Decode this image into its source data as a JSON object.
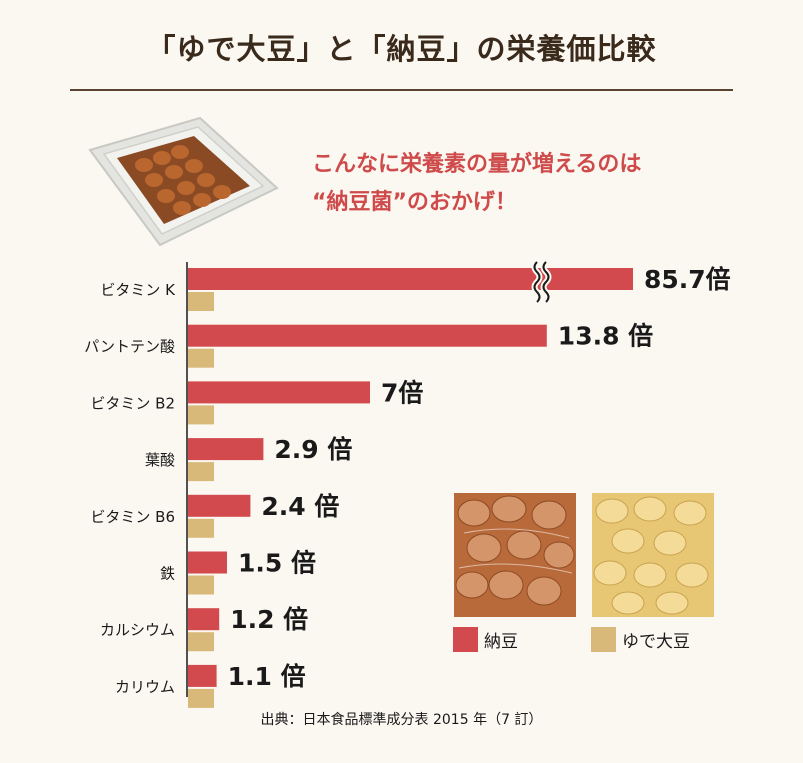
{
  "header": {
    "title": "「ゆで大豆」と「納豆」の栄養価比較"
  },
  "callout": {
    "line1": "こんなに栄養素の量が増えるのは",
    "line2": "“納豆菌”のおかげ！"
  },
  "colors": {
    "natto": "#d24a4d",
    "boiled": "#d9b97a",
    "callout": "#cf4a4a",
    "title_rule": "#5a4230"
  },
  "chart_data": {
    "type": "bar",
    "orientation": "horizontal",
    "categories": [
      "ビタミン K",
      "パントテン酸",
      "ビタミン B2",
      "葉酸",
      "ビタミン B6",
      "鉄",
      "カルシウム",
      "カリウム"
    ],
    "series": [
      {
        "name": "納豆",
        "values": [
          85.7,
          13.8,
          7,
          2.9,
          2.4,
          1.5,
          1.2,
          1.1
        ]
      },
      {
        "name": "ゆで大豆",
        "values": [
          1,
          1,
          1,
          1,
          1,
          1,
          1,
          1
        ]
      }
    ],
    "data_labels": [
      "85.7倍",
      "13.8 倍",
      "7倍",
      "2.9 倍",
      "2.4 倍",
      "1.5 倍",
      "1.2 倍",
      "1.1 倍"
    ],
    "axis_break_on": "ビタミン K",
    "grid": false,
    "legend": "bottom-right"
  },
  "legend": {
    "natto_label": "納豆",
    "boiled_label": "ゆで大豆"
  },
  "source": "出典：日本食品標準成分表 2015 年（7 訂）"
}
